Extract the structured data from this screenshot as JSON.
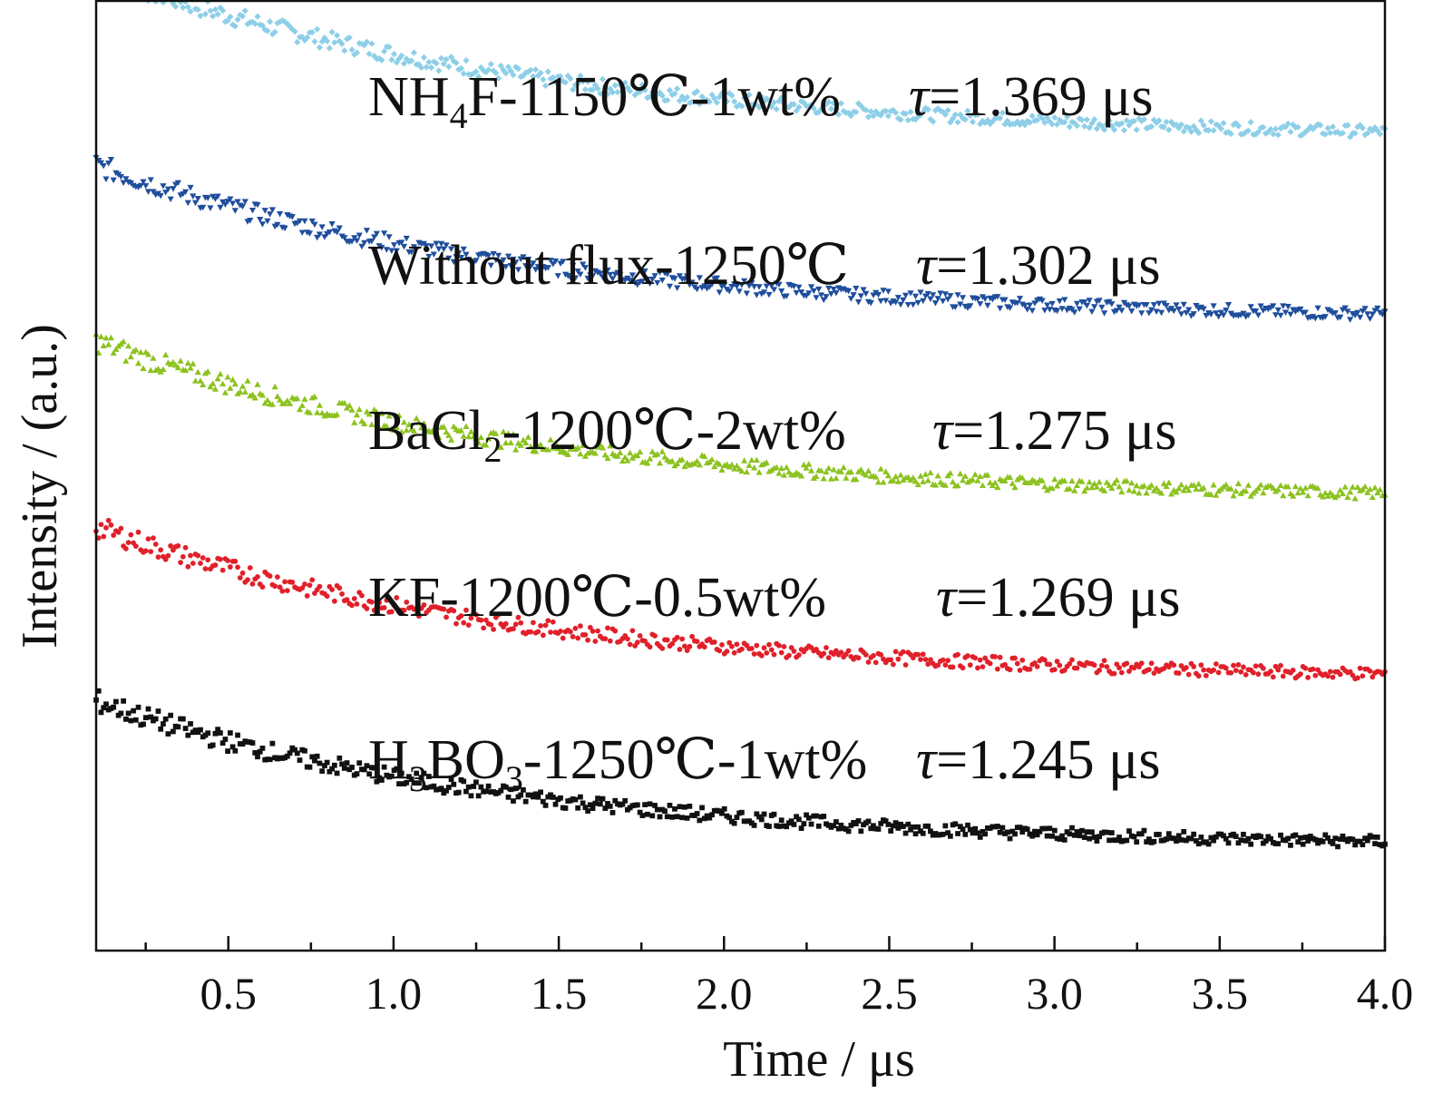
{
  "chart_data": {
    "type": "scatter",
    "xlabel": "Time / μs",
    "ylabel": "Intensity / (a.u.)",
    "xlim": [
      0.1,
      4.0
    ],
    "ylim": [
      0,
      1.0
    ],
    "x_ticks": [
      "0.5",
      "1.0",
      "1.5",
      "2.0",
      "2.5",
      "3.0",
      "3.5",
      "4.0"
    ],
    "y_ticks_labeled": false,
    "grid": false,
    "legend": "none",
    "series": [
      {
        "parts": [
          {
            "t": "NH"
          },
          {
            "t": "4",
            "sub": true
          },
          {
            "t": "F-1150℃-1wt%"
          }
        ],
        "tau_label": "=1.369 μs",
        "color": "#8ecfe8",
        "marker": "diamond",
        "baseline": 0.852,
        "amplitude": 0.178,
        "decay_us": 1.369
      },
      {
        "parts": [
          {
            "t": "Without flux-1250℃"
          }
        ],
        "tau_label": "=1.302 μs",
        "color": "#1f4e9c",
        "marker": "triangle-down",
        "baseline": 0.662,
        "amplitude": 0.165,
        "decay_us": 1.302
      },
      {
        "parts": [
          {
            "t": "BaCl"
          },
          {
            "t": "2",
            "sub": true
          },
          {
            "t": "-1200℃-2wt%"
          }
        ],
        "tau_label": "=1.275 μs",
        "color": "#8cc21f",
        "marker": "triangle-up",
        "baseline": 0.474,
        "amplitude": 0.168,
        "decay_us": 1.275
      },
      {
        "parts": [
          {
            "t": "KF-1200℃-0.5wt%"
          }
        ],
        "tau_label": "=1.269 μs",
        "color": "#e0202a",
        "marker": "circle",
        "baseline": 0.284,
        "amplitude": 0.162,
        "decay_us": 1.269
      },
      {
        "parts": [
          {
            "t": "H"
          },
          {
            "t": "3",
            "sub": true
          },
          {
            "t": "BO"
          },
          {
            "t": "3",
            "sub": true
          },
          {
            "t": "-1250℃-1wt%"
          }
        ],
        "tau_label": "=1.245 μs",
        "color": "#111111",
        "marker": "square",
        "baseline": 0.108,
        "amplitude": 0.155,
        "decay_us": 1.245
      }
    ]
  }
}
